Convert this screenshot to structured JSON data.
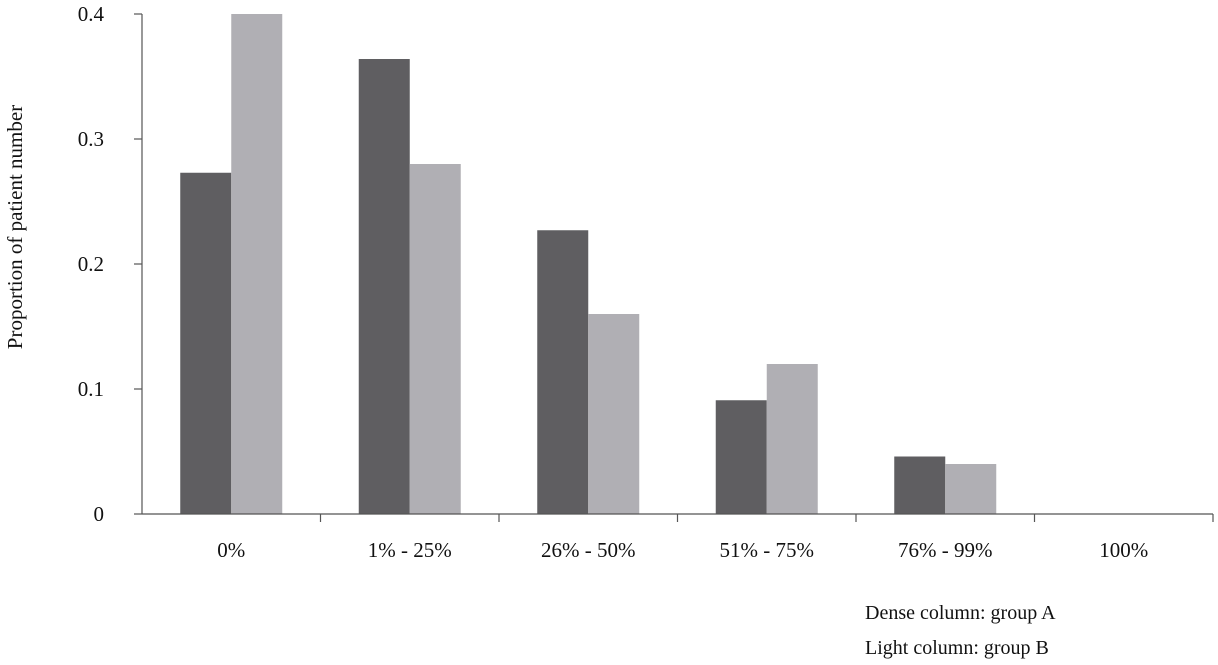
{
  "chart_data": {
    "type": "bar",
    "ylabel": "Proportion of patient number",
    "xlabel": "",
    "title": "",
    "categories": [
      "0%",
      "1% - 25%",
      "26% - 50%",
      "51% - 75%",
      "76% - 99%",
      "100%"
    ],
    "yticks": [
      "0",
      "0.1",
      "0.2",
      "0.3",
      "0.4"
    ],
    "ylim": [
      0,
      0.4
    ],
    "grid": false,
    "series": [
      {
        "values": [
          0.273,
          0.364,
          0.227,
          0.091,
          0.046,
          0.0
        ],
        "color": "#5f5e61"
      },
      {
        "values": [
          0.4,
          0.28,
          0.16,
          0.12,
          0.04,
          0.0
        ],
        "color": "#b0afb4"
      }
    ],
    "legend_notes": [
      "Dense column: group A",
      "Light column: group B"
    ]
  }
}
